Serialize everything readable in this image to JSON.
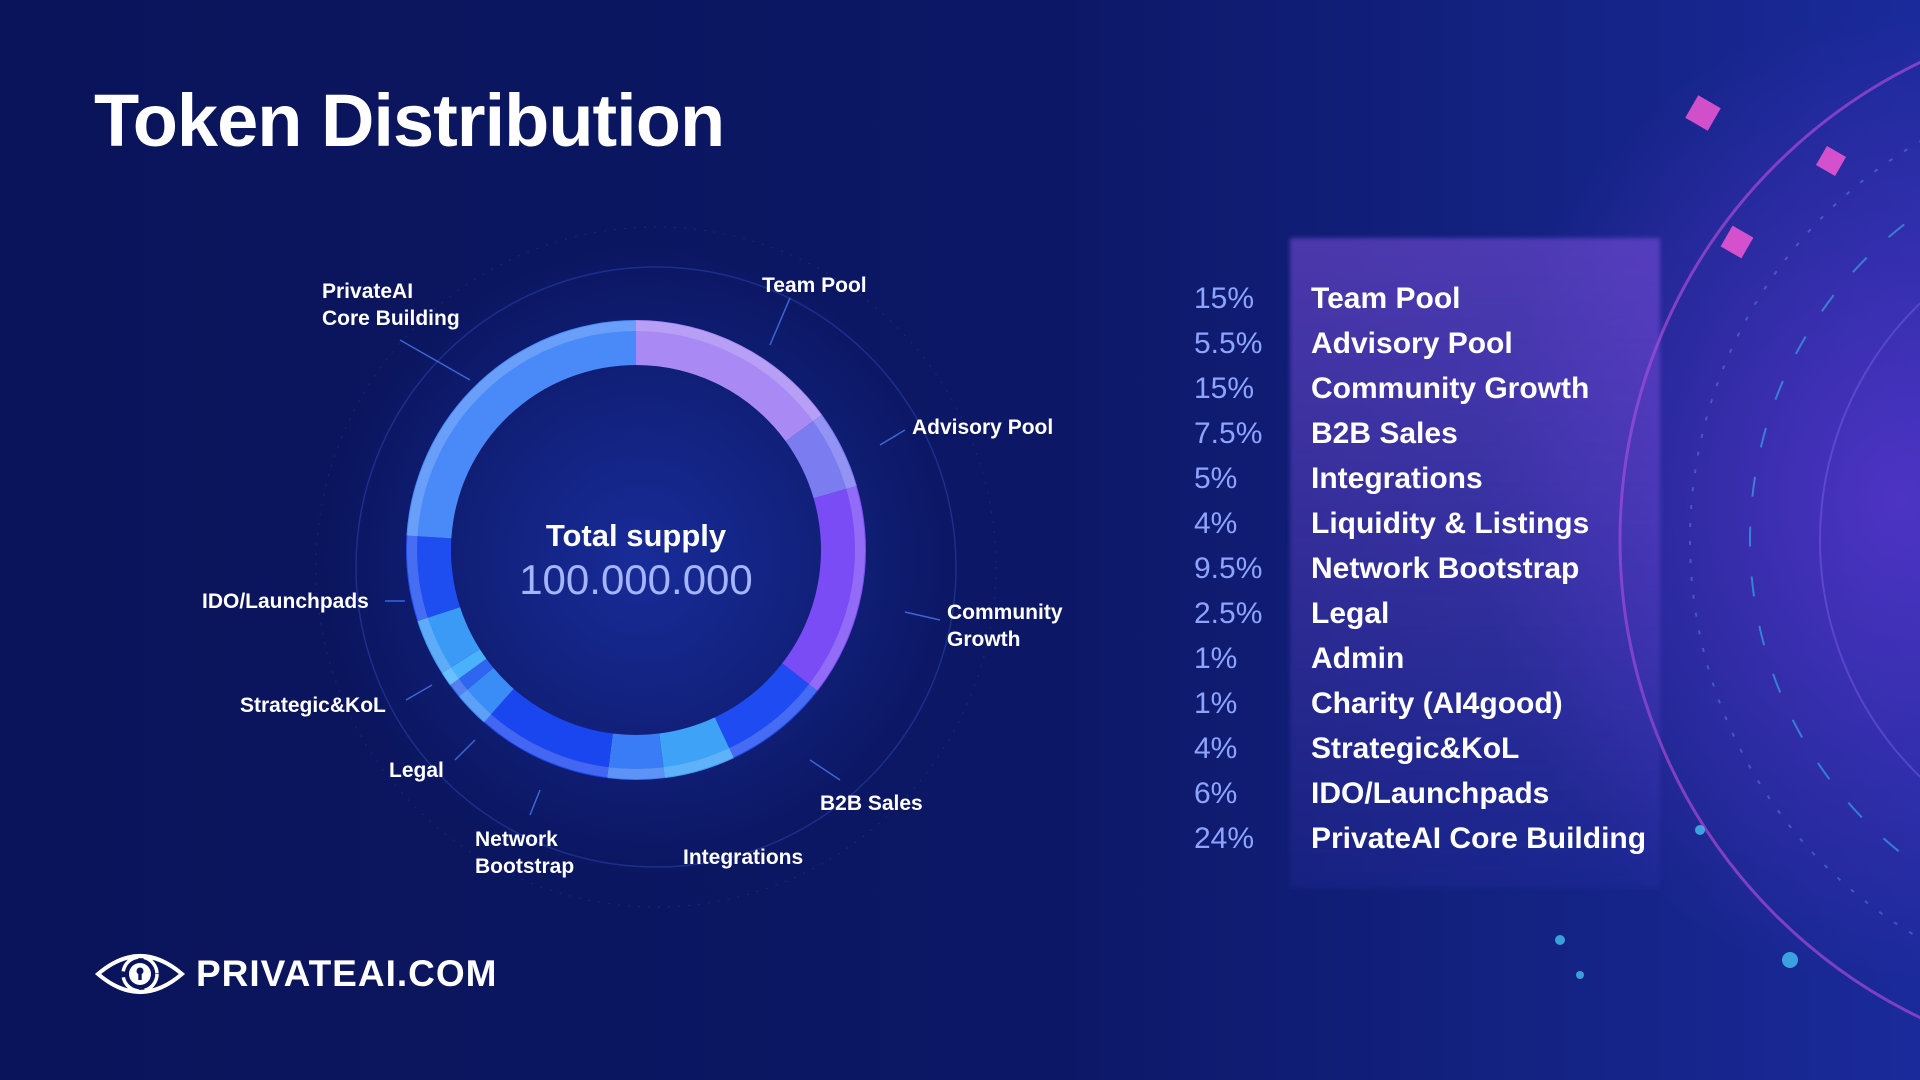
{
  "title": "Token Distribution",
  "center": {
    "label": "Total supply",
    "value": "100.000.000"
  },
  "brand": "PRIVATEAI.COM",
  "chart_data": {
    "type": "pie",
    "variant": "donut",
    "title": "Token Distribution",
    "total": 100000000,
    "slices": [
      {
        "name": "Team Pool",
        "value": 15,
        "pct_label": "15%",
        "color": "#a98af5",
        "chart_label": "Team Pool"
      },
      {
        "name": "Advisory Pool",
        "value": 5.5,
        "pct_label": "5.5%",
        "color": "#7b7cf0",
        "chart_label": "Advisory Pool"
      },
      {
        "name": "Community Growth",
        "value": 15,
        "pct_label": "15%",
        "color": "#7a4cf5",
        "chart_label": "Community Growth"
      },
      {
        "name": "B2B Sales",
        "value": 7.5,
        "pct_label": "7.5%",
        "color": "#1f4cf2",
        "chart_label": "B2B Sales"
      },
      {
        "name": "Integrations",
        "value": 5,
        "pct_label": "5%",
        "color": "#3ea2f7",
        "chart_label": "Integrations"
      },
      {
        "name": "Liquidity & Listings",
        "value": 4,
        "pct_label": "4%",
        "color": "#3a7cf5",
        "chart_label": ""
      },
      {
        "name": "Network Bootstrap",
        "value": 9.5,
        "pct_label": "9.5%",
        "color": "#1a46f0",
        "chart_label": "Network Bootstrap"
      },
      {
        "name": "Legal",
        "value": 2.5,
        "pct_label": "2.5%",
        "color": "#3a8cf6",
        "chart_label": "Legal"
      },
      {
        "name": "Admin",
        "value": 1,
        "pct_label": "1%",
        "color": "#2f66f0",
        "chart_label": ""
      },
      {
        "name": "Charity (AI4good)",
        "value": 1,
        "pct_label": "1%",
        "color": "#4ab2fb",
        "chart_label": ""
      },
      {
        "name": "Strategic&KoL",
        "value": 4,
        "pct_label": "4%",
        "color": "#3b9af6",
        "chart_label": "Strategic&KoL"
      },
      {
        "name": "IDO/Launchpads",
        "value": 6,
        "pct_label": "6%",
        "color": "#1e4ef0",
        "chart_label": "IDO/Launchpads"
      },
      {
        "name": "PrivateAI Core Building",
        "value": 24,
        "pct_label": "24%",
        "color": "#4a8af8",
        "chart_label": "PrivateAI Core Building"
      }
    ],
    "chart_labels": {
      "core": [
        "PrivateAI",
        "Core Building"
      ],
      "team": "Team Pool",
      "advisory": "Advisory Pool",
      "community": [
        "Community",
        "Growth"
      ],
      "b2b": "B2B Sales",
      "integrations": "Integrations",
      "network": [
        "Network",
        "Bootstrap"
      ],
      "legal": "Legal",
      "strategic": "Strategic&KoL",
      "ido": "IDO/Launchpads"
    }
  }
}
